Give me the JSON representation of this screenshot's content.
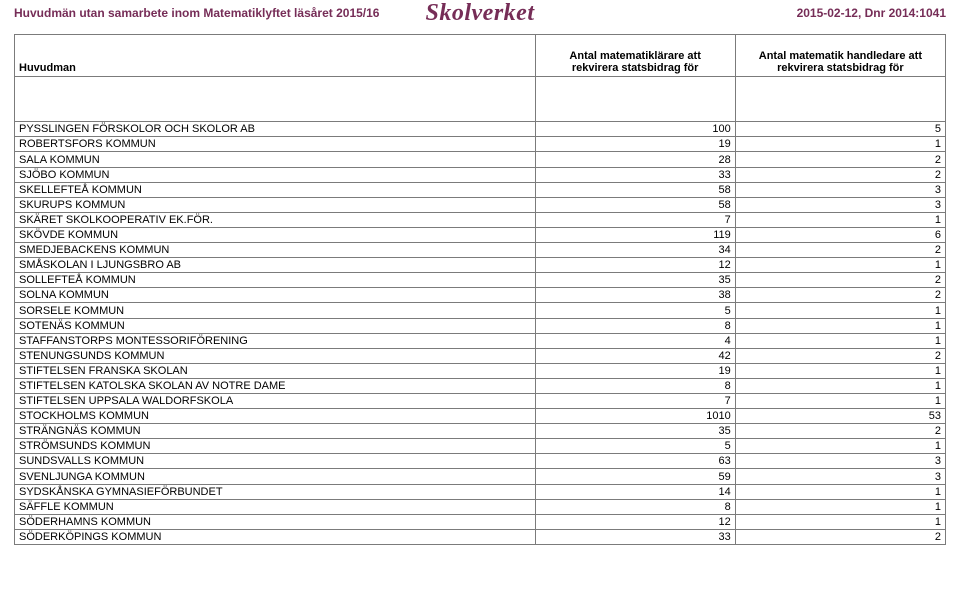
{
  "header": {
    "title_left": "Huvudmän utan samarbete inom Matematiklyftet läsåret 2015/16",
    "logo_text": "Skolverket",
    "date_right": "2015-02-12, Dnr 2014:1041"
  },
  "table": {
    "columns": {
      "a": "Huvudman",
      "b_line1": "Antal matematiklärare att",
      "b_line2": "rekvirera statsbidrag för",
      "c_line1": "Antal  matematik handledare att",
      "c_line2": "rekvirera statsbidrag för"
    },
    "rows": [
      {
        "a": "PYSSLINGEN FÖRSKOLOR OCH SKOLOR AB",
        "b": "100",
        "c": "5"
      },
      {
        "a": "ROBERTSFORS KOMMUN",
        "b": "19",
        "c": "1"
      },
      {
        "a": "SALA KOMMUN",
        "b": "28",
        "c": "2"
      },
      {
        "a": "SJÖBO KOMMUN",
        "b": "33",
        "c": "2"
      },
      {
        "a": "SKELLEFTEÅ KOMMUN",
        "b": "58",
        "c": "3"
      },
      {
        "a": "SKURUPS KOMMUN",
        "b": "58",
        "c": "3"
      },
      {
        "a": "SKÄRET SKOLKOOPERATIV EK.FÖR.",
        "b": "7",
        "c": "1"
      },
      {
        "a": "SKÖVDE KOMMUN",
        "b": "119",
        "c": "6"
      },
      {
        "a": "SMEDJEBACKENS KOMMUN",
        "b": "34",
        "c": "2"
      },
      {
        "a": "SMÅSKOLAN I LJUNGSBRO AB",
        "b": "12",
        "c": "1"
      },
      {
        "a": "SOLLEFTEÅ KOMMUN",
        "b": "35",
        "c": "2"
      },
      {
        "a": "SOLNA KOMMUN",
        "b": "38",
        "c": "2"
      },
      {
        "a": "SORSELE KOMMUN",
        "b": "5",
        "c": "1"
      },
      {
        "a": "SOTENÄS KOMMUN",
        "b": "8",
        "c": "1"
      },
      {
        "a": "STAFFANSTORPS MONTESSORIFÖRENING",
        "b": "4",
        "c": "1"
      },
      {
        "a": "STENUNGSUNDS KOMMUN",
        "b": "42",
        "c": "2"
      },
      {
        "a": "STIFTELSEN FRANSKA SKOLAN",
        "b": "19",
        "c": "1"
      },
      {
        "a": "STIFTELSEN KATOLSKA SKOLAN AV NOTRE DAME",
        "b": "8",
        "c": "1"
      },
      {
        "a": "STIFTELSEN UPPSALA WALDORFSKOLA",
        "b": "7",
        "c": "1"
      },
      {
        "a": "STOCKHOLMS KOMMUN",
        "b": "1010",
        "c": "53"
      },
      {
        "a": "STRÄNGNÄS KOMMUN",
        "b": "35",
        "c": "2"
      },
      {
        "a": "STRÖMSUNDS KOMMUN",
        "b": "5",
        "c": "1"
      },
      {
        "a": "SUNDSVALLS KOMMUN",
        "b": "63",
        "c": "3"
      },
      {
        "a": "SVENLJUNGA KOMMUN",
        "b": "59",
        "c": "3"
      },
      {
        "a": "SYDSKÅNSKA GYMNASIEFÖRBUNDET",
        "b": "14",
        "c": "1"
      },
      {
        "a": "SÄFFLE KOMMUN",
        "b": "8",
        "c": "1"
      },
      {
        "a": "SÖDERHAMNS KOMMUN",
        "b": "12",
        "c": "1"
      },
      {
        "a": "SÖDERKÖPINGS KOMMUN",
        "b": "33",
        "c": "2"
      }
    ]
  }
}
